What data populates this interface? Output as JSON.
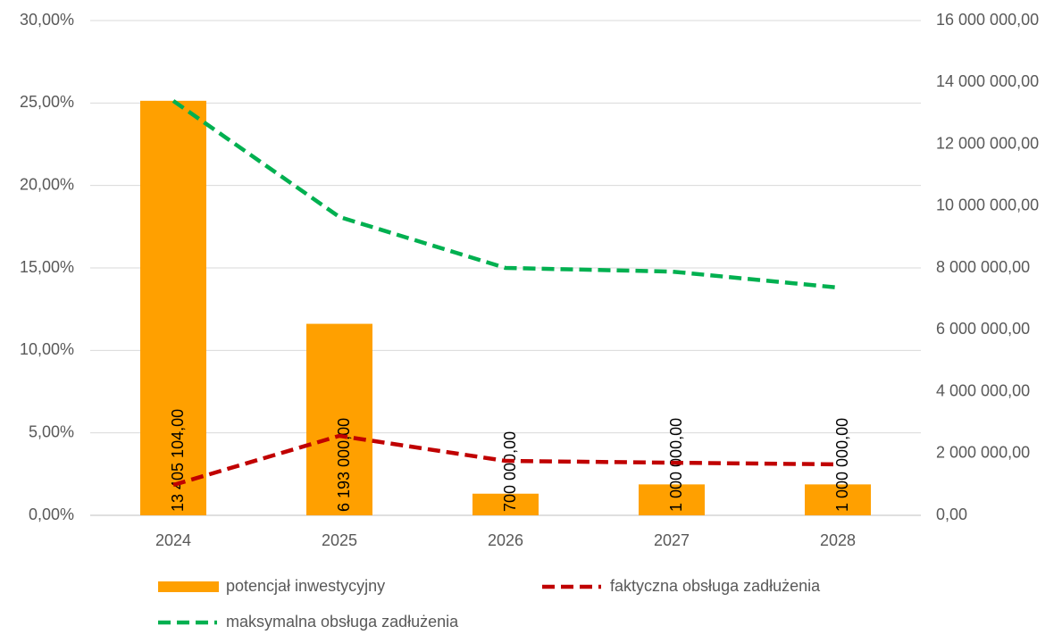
{
  "chart_data": {
    "type": "combo",
    "categories": [
      "2024",
      "2025",
      "2026",
      "2027",
      "2028"
    ],
    "series": [
      {
        "name": "potencjał inwestycyjny",
        "type": "bar",
        "axis": "y2",
        "color": "#ffa000",
        "values": [
          13405104,
          6193000,
          700000,
          1000000,
          1000000
        ],
        "value_labels": [
          "13 405 104,00",
          "6 193 000,00",
          "700 000,00",
          "1 000 000,00",
          "1 000 000,00"
        ]
      },
      {
        "name": "faktyczna obsługa zadłużenia",
        "type": "line",
        "color": "#c00000",
        "values": [
          1.84,
          4.82,
          3.3,
          3.19,
          3.09
        ]
      },
      {
        "name": "maksymalna obsługa zadłużenia",
        "type": "line",
        "color": "#00b050",
        "values": [
          25.13,
          18.09,
          15.0,
          14.78,
          13.81
        ]
      }
    ],
    "ylim": [
      0,
      30
    ],
    "yticks": [
      {
        "value": 0,
        "label": "0,00%"
      },
      {
        "value": 5,
        "label": "5,00%"
      },
      {
        "value": 10,
        "label": "10,00%"
      },
      {
        "value": 15,
        "label": "15,00%"
      },
      {
        "value": 20,
        "label": "20,00%"
      },
      {
        "value": 25,
        "label": "25,00%"
      },
      {
        "value": 30,
        "label": "30,00%"
      }
    ],
    "y2lim": [
      0,
      16000000
    ],
    "y2ticks": [
      {
        "value": 0,
        "label": "0,00"
      },
      {
        "value": 2000000,
        "label": "2 000 000,00"
      },
      {
        "value": 4000000,
        "label": "4 000 000,00"
      },
      {
        "value": 6000000,
        "label": "6 000 000,00"
      },
      {
        "value": 8000000,
        "label": "8 000 000,00"
      },
      {
        "value": 10000000,
        "label": "10 000 000,00"
      },
      {
        "value": 12000000,
        "label": "12 000 000,00"
      },
      {
        "value": 14000000,
        "label": "14 000 000,00"
      },
      {
        "value": 16000000,
        "label": "16 000 000,00"
      }
    ],
    "grid": true
  }
}
